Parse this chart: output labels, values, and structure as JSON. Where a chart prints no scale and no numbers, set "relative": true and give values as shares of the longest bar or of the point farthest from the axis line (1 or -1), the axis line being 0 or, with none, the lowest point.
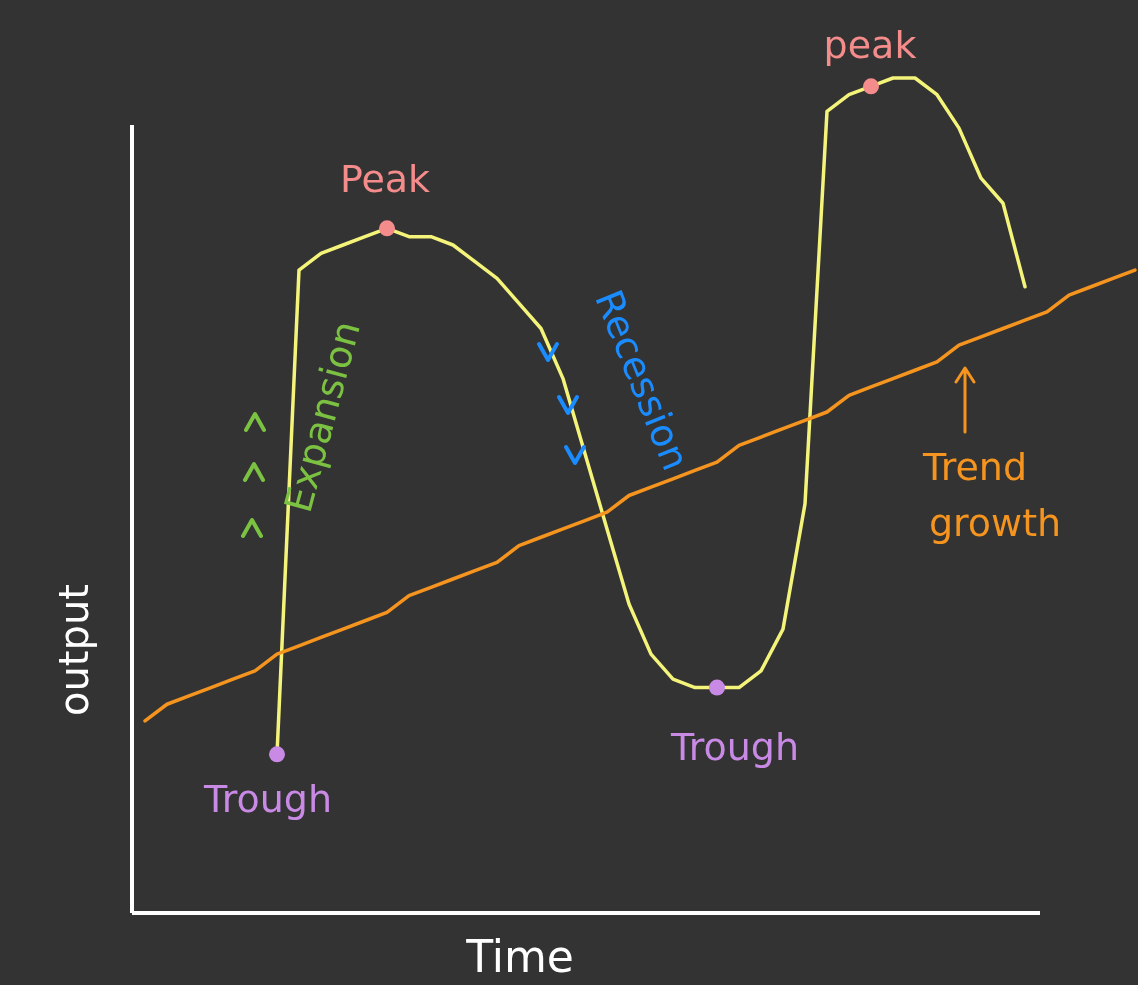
{
  "chart_data": {
    "type": "line",
    "xlabel": "Time",
    "ylabel": "output",
    "relative": true,
    "tick_labels": false,
    "marker": "none",
    "line_style": "solid",
    "categories": [
      null,
      null,
      null,
      null,
      null,
      null,
      null,
      null,
      null,
      null,
      null,
      null,
      null,
      null,
      null,
      null,
      null,
      null,
      null,
      null,
      null,
      null,
      null,
      null,
      null,
      null,
      null,
      null,
      null,
      null,
      null,
      null,
      null,
      null,
      null,
      null,
      null,
      null,
      null,
      null,
      null,
      null,
      null,
      null,
      null,
      null
    ],
    "series": [
      {
        "color": "#f4f47a",
        "values": [
          null,
          null,
          null,
          null,
          null,
          null,
          0.19,
          0.77,
          0.79,
          0.8,
          0.81,
          0.82,
          0.81,
          0.81,
          0.8,
          0.78,
          0.76,
          0.73,
          0.7,
          0.64,
          0.55,
          0.46,
          0.37,
          0.31,
          0.28,
          0.27,
          0.27,
          0.27,
          0.29,
          0.34,
          0.49,
          0.96,
          0.98,
          0.99,
          1.0,
          1.0,
          0.98,
          0.94,
          0.88,
          0.85,
          0.75,
          null,
          null,
          null,
          null,
          null
        ]
      },
      {
        "color": "#f5941e",
        "values": [
          0.23,
          0.25,
          0.26,
          0.27,
          0.28,
          0.29,
          0.31,
          0.32,
          0.33,
          0.34,
          0.35,
          0.36,
          0.38,
          0.39,
          0.4,
          0.41,
          0.42,
          0.44,
          0.45,
          0.46,
          0.47,
          0.48,
          0.5,
          0.51,
          0.52,
          0.53,
          0.54,
          0.56,
          0.57,
          0.58,
          0.59,
          0.6,
          0.62,
          0.63,
          0.64,
          0.65,
          0.66,
          0.68,
          0.69,
          0.7,
          0.71,
          0.72,
          0.74,
          0.75,
          0.76,
          0.77
        ]
      }
    ],
    "annotations": [
      {
        "text": "Peak",
        "y": 0.82
      },
      {
        "text": "peak",
        "y": 0.99
      },
      {
        "text": "Trough",
        "y": 0.19
      },
      {
        "text": "Trough",
        "y": 0.27
      },
      "Expansion",
      "Recession",
      "Trend growth"
    ]
  }
}
